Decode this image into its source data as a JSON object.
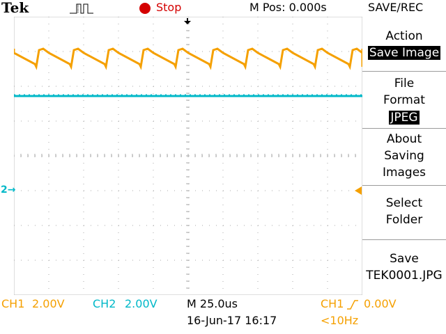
{
  "header": {
    "brand": "Tek",
    "trigger_icon": "acquisition-waveform-icon",
    "run_state": "Stop",
    "position": "M Pos: 0.000s",
    "menu_title": "SAVE/REC"
  },
  "menu": {
    "action_label": "Action",
    "action_value": "Save Image",
    "file_format_label_1": "File",
    "file_format_label_2": "Format",
    "file_format_value": "JPEG",
    "about_1": "About",
    "about_2": "Saving",
    "about_3": "Images",
    "select_1": "Select",
    "select_2": "Folder",
    "save_1": "Save",
    "save_2": "TEK0001.JPG"
  },
  "markers": {
    "ch2_ground": "2"
  },
  "readouts": {
    "ch1": "CH1",
    "ch1_scale": "2.00V",
    "ch2": "CH2",
    "ch2_scale": "2.00V",
    "timebase": "M 25.0us",
    "datetime": "16-Jun-17 16:17",
    "trig_source": "CH1",
    "trig_level": "0.00V",
    "trig_freq": "<10Hz"
  },
  "colors": {
    "ch1": "#f5a000",
    "ch2": "#00b8c8",
    "stop": "#d40000"
  }
}
